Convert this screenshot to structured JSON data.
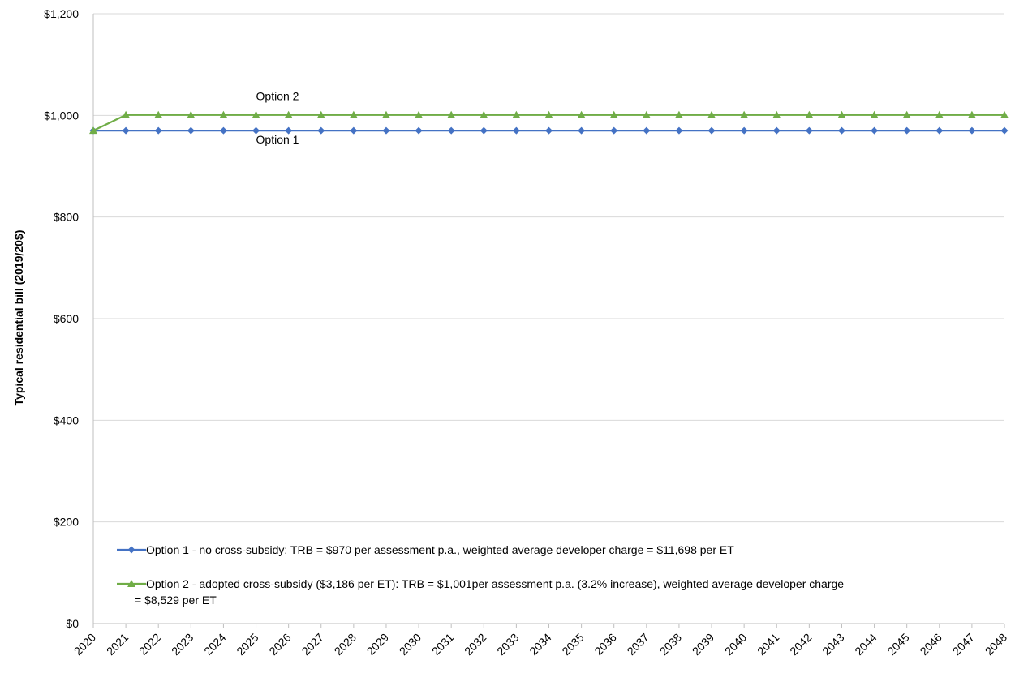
{
  "chart_data": {
    "type": "line",
    "title": "",
    "xlabel": "",
    "ylabel": "Typical residential bill (2019/20$)",
    "x": [
      "2020",
      "2021",
      "2022",
      "2023",
      "2024",
      "2025",
      "2026",
      "2027",
      "2028",
      "2029",
      "2030",
      "2031",
      "2032",
      "2033",
      "2034",
      "2035",
      "2036",
      "2037",
      "2038",
      "2039",
      "2040",
      "2041",
      "2042",
      "2043",
      "2044",
      "2045",
      "2046",
      "2047",
      "2048"
    ],
    "ylim": [
      0,
      1200
    ],
    "yticks": [
      0,
      200,
      400,
      600,
      800,
      1000,
      1200
    ],
    "ytick_labels": [
      "$0",
      "$200",
      "$400",
      "$600",
      "$800",
      "$1,000",
      "$1,200"
    ],
    "grid": "horizontal",
    "legend_position": "bottom-inside",
    "series": [
      {
        "name": "Option 1 - no cross-subsidy: TRB = $970 per assessment p.a., weighted average developer charge = $11,698 per ET",
        "legend_lines": [
          "Option 1 - no cross-subsidy: TRB = $970 per assessment p.a., weighted average developer charge = $11,698 per ET"
        ],
        "color": "#4472C4",
        "marker": "diamond",
        "values": [
          970,
          970,
          970,
          970,
          970,
          970,
          970,
          970,
          970,
          970,
          970,
          970,
          970,
          970,
          970,
          970,
          970,
          970,
          970,
          970,
          970,
          970,
          970,
          970,
          970,
          970,
          970,
          970,
          970
        ]
      },
      {
        "name": "Option 2 - adopted cross-subsidy ($3,186 per ET): TRB = $1,001per assessment p.a. (3.2% increase), weighted average developer charge = $8,529 per ET",
        "legend_lines": [
          "Option 2 - adopted cross-subsidy ($3,186 per ET): TRB = $1,001per assessment p.a. (3.2% increase), weighted average developer charge",
          "= $8,529 per ET"
        ],
        "color": "#70AD47",
        "marker": "triangle",
        "values": [
          970,
          1001,
          1001,
          1001,
          1001,
          1001,
          1001,
          1001,
          1001,
          1001,
          1001,
          1001,
          1001,
          1001,
          1001,
          1001,
          1001,
          1001,
          1001,
          1001,
          1001,
          1001,
          1001,
          1001,
          1001,
          1001,
          1001,
          1001,
          1001
        ]
      }
    ],
    "annotations": [
      {
        "text": "Option 2",
        "at_x": "2025",
        "at_y": 1030
      },
      {
        "text": "Option 1",
        "at_x": "2025",
        "at_y": 945
      }
    ]
  }
}
